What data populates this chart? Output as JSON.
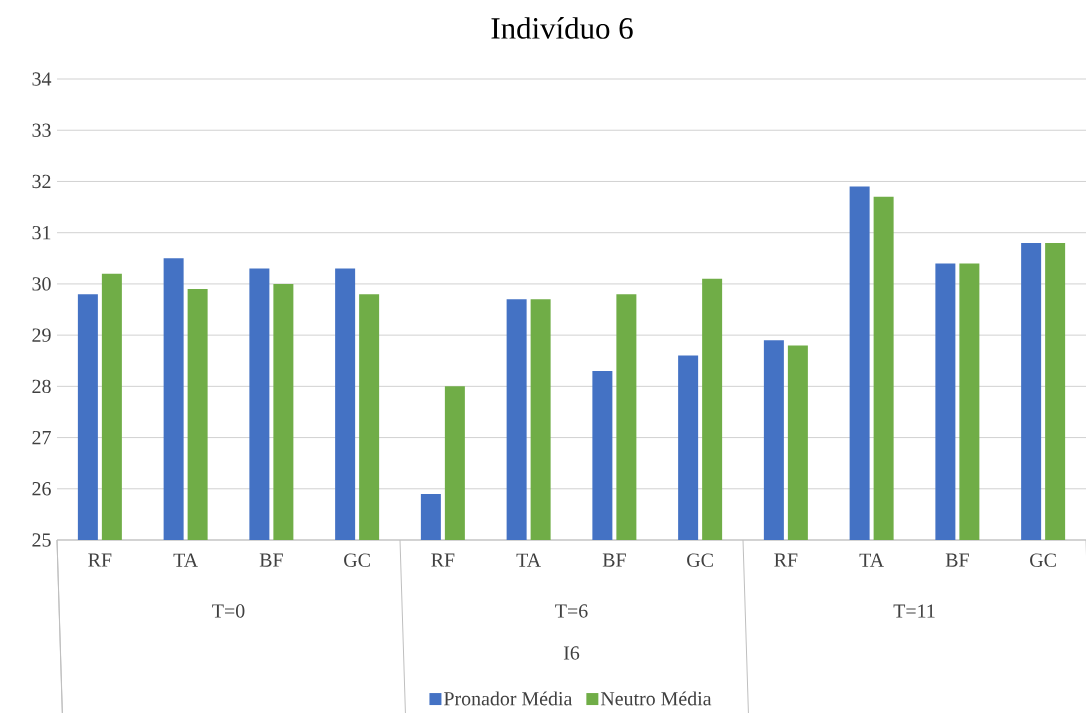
{
  "chart_data": {
    "type": "bar",
    "title": "Indivíduo 6",
    "categories": [
      "RF",
      "TA",
      "BF",
      "GC",
      "RF",
      "TA",
      "BF",
      "GC",
      "RF",
      "TA",
      "BF",
      "GC"
    ],
    "series": [
      {
        "name": "Pronador Média",
        "color": "#4472c4",
        "values": [
          29.8,
          30.5,
          30.3,
          30.3,
          25.9,
          29.7,
          28.3,
          28.6,
          28.9,
          31.9,
          30.4,
          30.8
        ]
      },
      {
        "name": "Neutro Média",
        "color": "#70ad47",
        "values": [
          30.2,
          29.9,
          30.0,
          29.8,
          28.0,
          29.7,
          29.8,
          30.1,
          28.8,
          31.7,
          30.4,
          30.8
        ]
      }
    ],
    "ylim": [
      25,
      34
    ],
    "yticks": [
      25,
      26,
      27,
      28,
      29,
      30,
      31,
      32,
      33,
      34
    ],
    "grid": "y",
    "legend": "bottom",
    "annotations": [
      "T=0",
      "T=6",
      "T=11",
      "I6"
    ]
  }
}
